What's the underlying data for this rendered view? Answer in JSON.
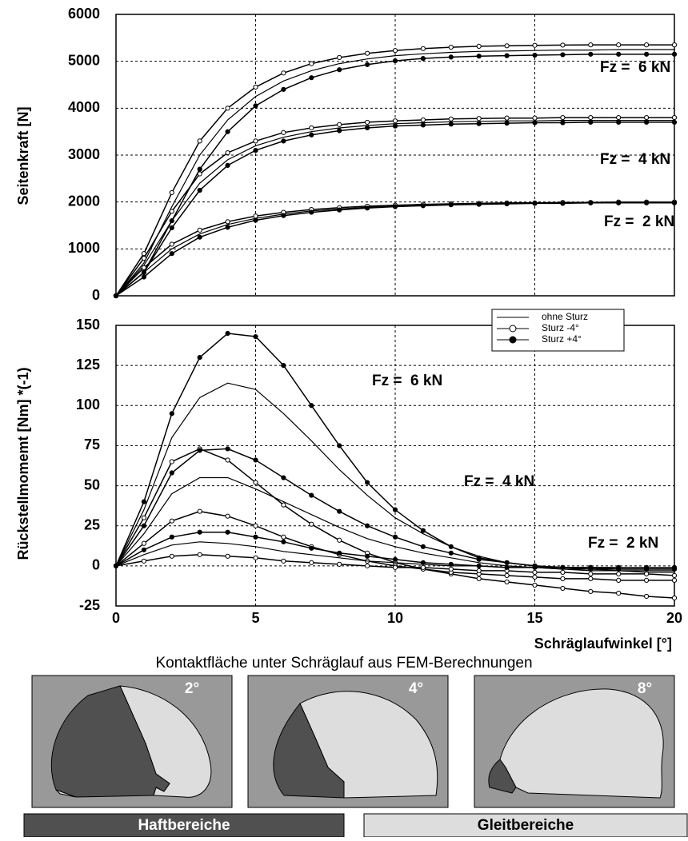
{
  "chart_data": [
    {
      "type": "line",
      "ylabel": "Seitenkraft [N]",
      "x": [
        0,
        1,
        2,
        3,
        4,
        5,
        6,
        7,
        8,
        9,
        10,
        11,
        12,
        13,
        14,
        15,
        16,
        17,
        18,
        19,
        20
      ],
      "xlim": [
        0,
        20
      ],
      "xticks": [
        0,
        5,
        10,
        15,
        20
      ],
      "ylim": [
        0,
        6000
      ],
      "yticks": [
        0,
        1000,
        2000,
        3000,
        4000,
        5000,
        6000
      ],
      "grid": true,
      "color": "#000000",
      "annotations": [
        "Fz =  6 kN",
        "Fz =  4 kN",
        "Fz =  2 kN"
      ],
      "series": [
        {
          "name": "Sturz -4°",
          "marker": "open",
          "values": [
            0,
            900,
            2200,
            3300,
            4000,
            4450,
            4750,
            4950,
            5080,
            5170,
            5230,
            5270,
            5300,
            5320,
            5330,
            5340,
            5345,
            5350,
            5350,
            5350,
            5350
          ]
        },
        {
          "name": "ohne Sturz",
          "marker": "none",
          "values": [
            0,
            700,
            1900,
            3000,
            3750,
            4250,
            4580,
            4800,
            4950,
            5050,
            5120,
            5160,
            5190,
            5210,
            5220,
            5230,
            5240,
            5240,
            5250,
            5250,
            5250
          ]
        },
        {
          "name": "Sturz +4°",
          "marker": "filled",
          "values": [
            0,
            500,
            1600,
            2700,
            3500,
            4050,
            4400,
            4650,
            4820,
            4930,
            5010,
            5060,
            5090,
            5110,
            5120,
            5130,
            5140,
            5150,
            5150,
            5150,
            5150
          ]
        },
        {
          "name": "Sturz -4°",
          "marker": "open",
          "values": [
            0,
            800,
            1800,
            2600,
            3050,
            3300,
            3480,
            3580,
            3650,
            3700,
            3730,
            3750,
            3770,
            3780,
            3790,
            3790,
            3800,
            3800,
            3800,
            3800,
            3800
          ]
        },
        {
          "name": "ohne Sturz",
          "marker": "none",
          "values": [
            0,
            650,
            1600,
            2400,
            2900,
            3200,
            3380,
            3500,
            3580,
            3630,
            3670,
            3690,
            3710,
            3720,
            3730,
            3730,
            3740,
            3740,
            3740,
            3740,
            3740
          ]
        },
        {
          "name": "Sturz +4°",
          "marker": "filled",
          "values": [
            0,
            500,
            1450,
            2250,
            2780,
            3100,
            3300,
            3430,
            3520,
            3580,
            3620,
            3640,
            3660,
            3670,
            3680,
            3690,
            3690,
            3700,
            3700,
            3700,
            3700
          ]
        },
        {
          "name": "Sturz -4°",
          "marker": "open",
          "values": [
            0,
            600,
            1100,
            1400,
            1580,
            1700,
            1780,
            1840,
            1880,
            1910,
            1930,
            1950,
            1960,
            1970,
            1980,
            1980,
            1990,
            1990,
            2000,
            2000,
            2000
          ]
        },
        {
          "name": "ohne Sturz",
          "marker": "none",
          "values": [
            0,
            500,
            1000,
            1320,
            1520,
            1650,
            1740,
            1810,
            1850,
            1890,
            1910,
            1930,
            1950,
            1960,
            1970,
            1970,
            1980,
            1980,
            1990,
            1990,
            1990
          ]
        },
        {
          "name": "Sturz +4°",
          "marker": "filled",
          "values": [
            0,
            400,
            900,
            1250,
            1460,
            1610,
            1710,
            1780,
            1830,
            1870,
            1900,
            1920,
            1940,
            1950,
            1960,
            1970,
            1970,
            1980,
            1980,
            1980,
            1980
          ]
        }
      ]
    },
    {
      "type": "line",
      "ylabel": "Rückstellmomemt [Nm] *(-1)",
      "xlabel": "Schräglaufwinkel [°]",
      "x": [
        0,
        1,
        2,
        3,
        4,
        5,
        6,
        7,
        8,
        9,
        10,
        11,
        12,
        13,
        14,
        15,
        16,
        17,
        18,
        19,
        20
      ],
      "xlim": [
        0,
        20
      ],
      "xticks": [
        0,
        5,
        10,
        15,
        20
      ],
      "ylim": [
        -25,
        150
      ],
      "yticks": [
        -25,
        0,
        25,
        50,
        75,
        100,
        125,
        150
      ],
      "grid": true,
      "color": "#000000",
      "legend": "top-right",
      "annotations": [
        "Fz =  6 kN",
        "Fz =  4 kN",
        "Fz =  2 kN"
      ],
      "series": [
        {
          "name": "ohne Sturz",
          "marker": "none",
          "values": [
            0,
            35,
            80,
            105,
            114,
            110,
            95,
            78,
            60,
            44,
            30,
            20,
            12,
            6,
            2,
            0,
            -1,
            -2,
            -3,
            -3,
            -3
          ]
        },
        {
          "name": "Sturz -4°",
          "marker": "open",
          "values": [
            0,
            30,
            65,
            73,
            66,
            52,
            38,
            26,
            16,
            8,
            2,
            -2,
            -5,
            -8,
            -10,
            -12,
            -14,
            -16,
            -17,
            -19,
            -20
          ]
        },
        {
          "name": "Sturz +4°",
          "marker": "filled",
          "values": [
            0,
            40,
            95,
            130,
            145,
            143,
            125,
            100,
            75,
            52,
            35,
            22,
            12,
            5,
            2,
            0,
            -1,
            -1,
            -1,
            -1,
            -1
          ]
        },
        {
          "name": "ohne Sturz",
          "marker": "none",
          "values": [
            0,
            20,
            45,
            55,
            55,
            48,
            40,
            32,
            24,
            17,
            12,
            8,
            5,
            2,
            0,
            -1,
            -2,
            -3,
            -3,
            -4,
            -4
          ]
        },
        {
          "name": "Sturz -4°",
          "marker": "open",
          "values": [
            0,
            14,
            28,
            34,
            31,
            25,
            18,
            12,
            7,
            3,
            0,
            -2,
            -4,
            -5,
            -6,
            -7,
            -8,
            -8,
            -9,
            -9,
            -9
          ]
        },
        {
          "name": "Sturz +4°",
          "marker": "filled",
          "values": [
            0,
            25,
            58,
            72,
            73,
            66,
            55,
            44,
            34,
            25,
            18,
            12,
            8,
            4,
            2,
            0,
            -1,
            -1,
            -2,
            -2,
            -2
          ]
        },
        {
          "name": "ohne Sturz",
          "marker": "none",
          "values": [
            0,
            7,
            13,
            15,
            14,
            12,
            9,
            7,
            5,
            3,
            2,
            1,
            0,
            0,
            -1,
            -1,
            -2,
            -2,
            -2,
            -2,
            -2
          ]
        },
        {
          "name": "Sturz -4°",
          "marker": "open",
          "values": [
            0,
            3,
            6,
            7,
            6,
            5,
            3,
            2,
            1,
            0,
            -1,
            -1,
            -2,
            -3,
            -3,
            -4,
            -4,
            -5,
            -5,
            -5,
            -6
          ]
        },
        {
          "name": "Sturz +4°",
          "marker": "filled",
          "values": [
            0,
            10,
            18,
            21,
            21,
            18,
            15,
            11,
            8,
            6,
            4,
            2,
            1,
            0,
            -1,
            -1,
            -1,
            -2,
            -2,
            -2,
            -2
          ]
        }
      ]
    }
  ],
  "contact": {
    "title": "Kontaktfläche unter Schräglauf aus FEM-Berechnungen",
    "panels": [
      "2°",
      "4°",
      "8°"
    ],
    "legend": [
      "Haftbereiche",
      "Gleitbereiche"
    ]
  }
}
